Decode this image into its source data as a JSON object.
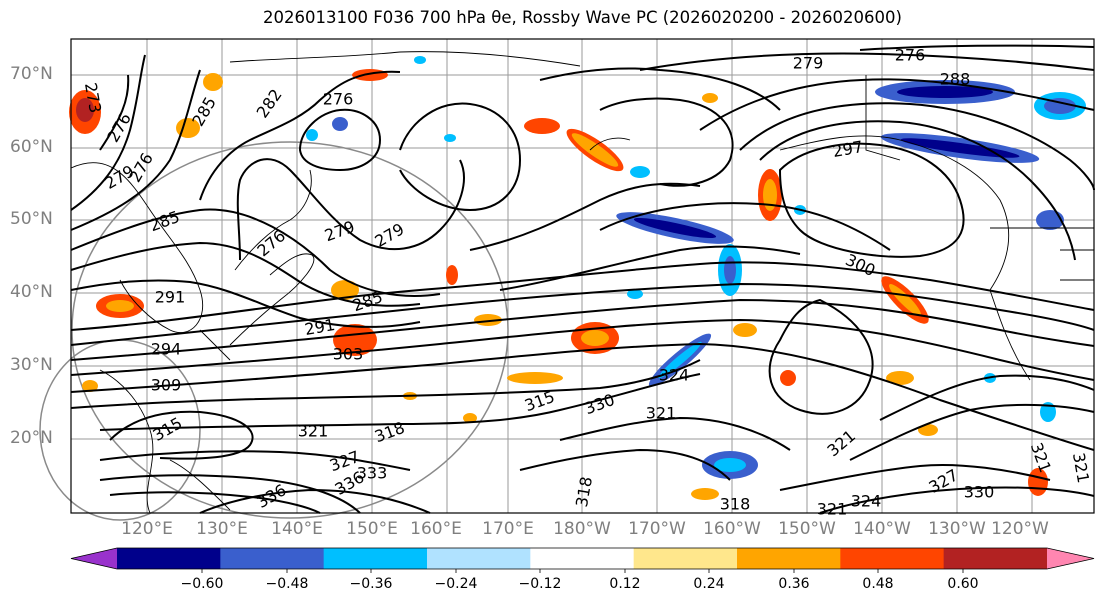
{
  "title": "2026013100 F036 700 hPa θe, Rossby Wave PC (2026020200 - 2026020600)",
  "lat_labels": [
    "70°N",
    "60°N",
    "50°N",
    "40°N",
    "30°N",
    "20°N"
  ],
  "lon_labels": [
    "120°E",
    "130°E",
    "140°E",
    "150°E",
    "160°E",
    "170°E",
    "180°W",
    "170°W",
    "160°W",
    "150°W",
    "140°W",
    "130°W",
    "120°W"
  ],
  "colorbar": {
    "ticks": [
      "−0.60",
      "−0.48",
      "−0.36",
      "−0.24",
      "−0.12",
      "0.12",
      "0.24",
      "0.36",
      "0.48",
      "0.60"
    ],
    "colors": [
      "#9932cc",
      "#00008b",
      "#3a5fcd",
      "#00bfff",
      "#b0e2ff",
      "#ffffff",
      "#ffe78c",
      "#ffa500",
      "#ff4500",
      "#b22222",
      "#ff86b1"
    ]
  },
  "contour_labels": [
    "273",
    "276",
    "282",
    "285",
    "276",
    "279",
    "276",
    "288",
    "297",
    "279",
    "285",
    "276",
    "276",
    "279",
    "279",
    "285",
    "300",
    "291",
    "291",
    "294",
    "303",
    "309",
    "315",
    "321",
    "315",
    "318",
    "324",
    "321",
    "330",
    "321",
    "327",
    "333",
    "336",
    "336",
    "318",
    "318",
    "321",
    "324",
    "327",
    "330",
    "321",
    "321"
  ],
  "chart_data": {
    "type": "map",
    "field": "700 hPa θe",
    "shading": "Rossby Wave PC",
    "init": "2026013100",
    "forecast_hour": "F036",
    "valid_range": "2026020200 - 2026020600",
    "extent": {
      "lon_min": 112,
      "lon_max": 248,
      "lat_min": 10,
      "lat_max": 75
    },
    "gridlines": true,
    "contour_levels": [
      273,
      276,
      279,
      282,
      285,
      288,
      291,
      294,
      297,
      300,
      303,
      306,
      309,
      312,
      315,
      318,
      321,
      324,
      327,
      330,
      333,
      336
    ]
  }
}
